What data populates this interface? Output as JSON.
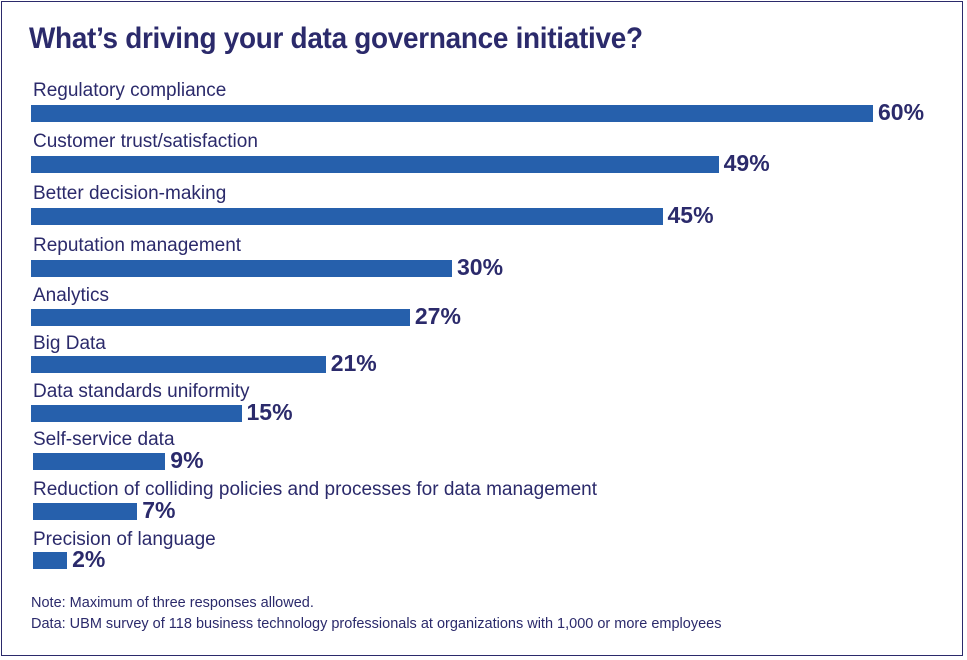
{
  "chart_data": {
    "type": "bar",
    "orientation": "horizontal",
    "title": "What’s driving your data governance initiative?",
    "categories": [
      "Regulatory compliance",
      "Customer trust/satisfaction",
      "Better decision-making",
      "Reputation management",
      "Analytics",
      "Big Data",
      "Data standards uniformity",
      "Self-service data",
      "Reduction of colliding policies and processes for data management",
      "Precision of language"
    ],
    "values": [
      60,
      49,
      45,
      30,
      27,
      21,
      15,
      9,
      7,
      2
    ],
    "value_labels": [
      "60%",
      "49%",
      "45%",
      "30%",
      "27%",
      "21%",
      "15%",
      "9%",
      "7%",
      "2%"
    ],
    "unit": "%",
    "xlabel": "",
    "ylabel": "",
    "xlim": [
      0,
      60
    ],
    "grid": false,
    "legend": "none",
    "bar_color": "#2660ac",
    "text_color": "#2b2a6b"
  },
  "notes": [
    "Note: Maximum of three responses allowed.",
    "Data: UBM survey of 118 business technology professionals at organizations with 1,000 or more employees"
  ]
}
